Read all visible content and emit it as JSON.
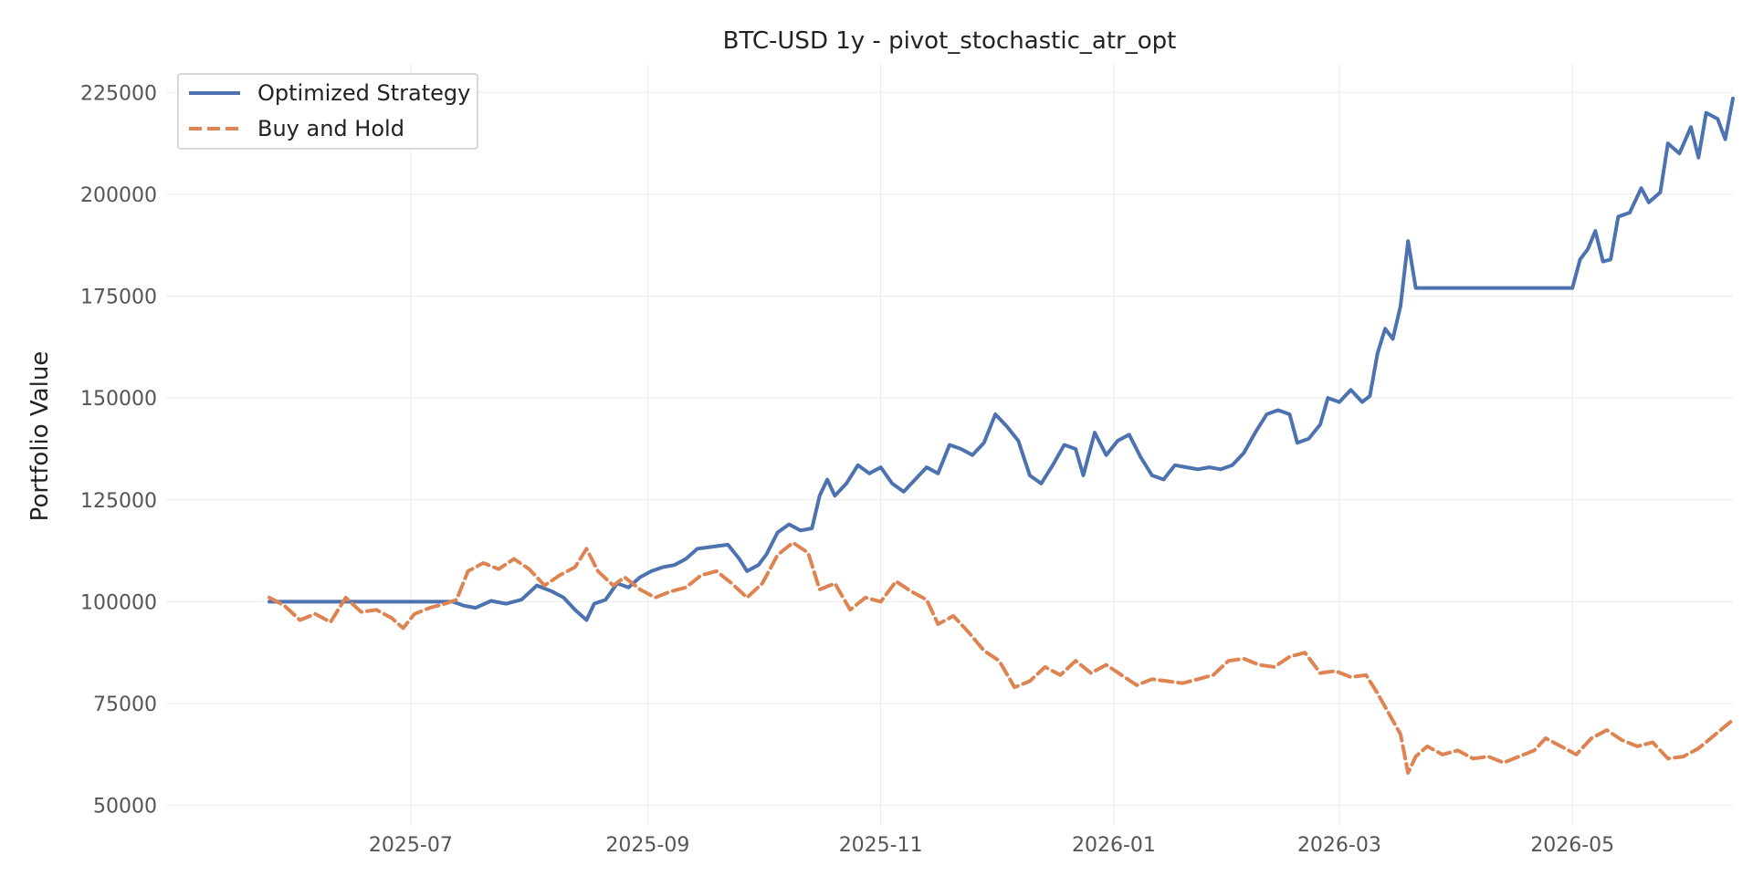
{
  "chart_data": {
    "type": "line",
    "title": "BTC-USD 1y - pivot_stochastic_atr_opt",
    "xlabel": "",
    "ylabel": "Portfolio Value",
    "ylim": [
      45000,
      232000
    ],
    "xlim": [
      "2025-04-28",
      "2026-06-12"
    ],
    "grid": true,
    "legend": "top-left",
    "y_ticks": [
      50000,
      75000,
      100000,
      125000,
      150000,
      175000,
      200000,
      225000
    ],
    "y_tick_labels": [
      "50000",
      "75000",
      "100000",
      "125000",
      "150000",
      "175000",
      "200000",
      "225000"
    ],
    "x_ticks": [
      "2025-07-01",
      "2025-09-01",
      "2025-11-01",
      "2026-01-01",
      "2026-03-01",
      "2026-05-01"
    ],
    "x_tick_labels": [
      "2025-07",
      "2025-09",
      "2025-11",
      "2026-01",
      "2026-03",
      "2026-05"
    ],
    "series": [
      {
        "name": "Optimized Strategy",
        "color": "#4c72b0",
        "style": "solid",
        "points": [
          [
            "2025-05-25",
            100000
          ],
          [
            "2025-07-12",
            100000
          ],
          [
            "2025-07-15",
            99000
          ],
          [
            "2025-07-18",
            98500
          ],
          [
            "2025-07-22",
            100200
          ],
          [
            "2025-07-26",
            99500
          ],
          [
            "2025-07-30",
            100500
          ],
          [
            "2025-08-03",
            104000
          ],
          [
            "2025-08-07",
            102500
          ],
          [
            "2025-08-10",
            101000
          ],
          [
            "2025-08-13",
            98000
          ],
          [
            "2025-08-16",
            95500
          ],
          [
            "2025-08-18",
            99500
          ],
          [
            "2025-08-21",
            100500
          ],
          [
            "2025-08-24",
            104500
          ],
          [
            "2025-08-27",
            103500
          ],
          [
            "2025-08-30",
            106000
          ],
          [
            "2025-09-02",
            107500
          ],
          [
            "2025-09-05",
            108500
          ],
          [
            "2025-09-08",
            109000
          ],
          [
            "2025-09-11",
            110500
          ],
          [
            "2025-09-14",
            113000
          ],
          [
            "2025-09-18",
            113500
          ],
          [
            "2025-09-22",
            114000
          ],
          [
            "2025-09-25",
            110500
          ],
          [
            "2025-09-27",
            107500
          ],
          [
            "2025-09-30",
            109000
          ],
          [
            "2025-10-02",
            111500
          ],
          [
            "2025-10-05",
            117000
          ],
          [
            "2025-10-08",
            119000
          ],
          [
            "2025-10-11",
            117500
          ],
          [
            "2025-10-14",
            118000
          ],
          [
            "2025-10-16",
            126000
          ],
          [
            "2025-10-18",
            130000
          ],
          [
            "2025-10-20",
            126000
          ],
          [
            "2025-10-23",
            129000
          ],
          [
            "2025-10-26",
            133500
          ],
          [
            "2025-10-29",
            131500
          ],
          [
            "2025-11-01",
            133000
          ],
          [
            "2025-11-04",
            129000
          ],
          [
            "2025-11-07",
            127000
          ],
          [
            "2025-11-10",
            130000
          ],
          [
            "2025-11-13",
            133000
          ],
          [
            "2025-11-16",
            131500
          ],
          [
            "2025-11-19",
            138500
          ],
          [
            "2025-11-22",
            137500
          ],
          [
            "2025-11-25",
            136000
          ],
          [
            "2025-11-28",
            139000
          ],
          [
            "2025-12-01",
            146000
          ],
          [
            "2025-12-04",
            143000
          ],
          [
            "2025-12-07",
            139500
          ],
          [
            "2025-12-10",
            131000
          ],
          [
            "2025-12-13",
            129000
          ],
          [
            "2025-12-16",
            133500
          ],
          [
            "2025-12-19",
            138500
          ],
          [
            "2025-12-22",
            137500
          ],
          [
            "2025-12-24",
            131000
          ],
          [
            "2025-12-27",
            141500
          ],
          [
            "2025-12-30",
            136000
          ],
          [
            "2026-01-02",
            139500
          ],
          [
            "2026-01-05",
            141000
          ],
          [
            "2026-01-08",
            135500
          ],
          [
            "2026-01-11",
            131000
          ],
          [
            "2026-01-14",
            130000
          ],
          [
            "2026-01-17",
            133500
          ],
          [
            "2026-01-20",
            133000
          ],
          [
            "2026-01-23",
            132500
          ],
          [
            "2026-01-26",
            133000
          ],
          [
            "2026-01-29",
            132500
          ],
          [
            "2026-02-01",
            133500
          ],
          [
            "2026-02-04",
            136500
          ],
          [
            "2026-02-07",
            141500
          ],
          [
            "2026-02-10",
            146000
          ],
          [
            "2026-02-13",
            147000
          ],
          [
            "2026-02-16",
            146000
          ],
          [
            "2026-02-18",
            139000
          ],
          [
            "2026-02-21",
            140000
          ],
          [
            "2026-02-24",
            143500
          ],
          [
            "2026-02-26",
            150000
          ],
          [
            "2026-03-01",
            149000
          ],
          [
            "2026-03-04",
            152000
          ],
          [
            "2026-03-07",
            149000
          ],
          [
            "2026-03-09",
            150500
          ],
          [
            "2026-03-11",
            161000
          ],
          [
            "2026-03-13",
            167000
          ],
          [
            "2026-03-15",
            164500
          ],
          [
            "2026-03-17",
            172500
          ],
          [
            "2026-03-19",
            188500
          ],
          [
            "2026-03-21",
            177000
          ],
          [
            "2026-05-01",
            177000
          ],
          [
            "2026-05-03",
            184000
          ],
          [
            "2026-05-05",
            186500
          ],
          [
            "2026-05-07",
            191000
          ],
          [
            "2026-05-09",
            183500
          ],
          [
            "2026-05-11",
            184000
          ],
          [
            "2026-05-13",
            194500
          ],
          [
            "2026-05-16",
            195500
          ],
          [
            "2026-05-19",
            201500
          ],
          [
            "2026-05-21",
            198000
          ],
          [
            "2026-05-24",
            200500
          ],
          [
            "2026-05-26",
            212500
          ],
          [
            "2026-05-29",
            210000
          ],
          [
            "2026-06-01",
            216500
          ],
          [
            "2026-06-03",
            209000
          ],
          [
            "2026-06-05",
            220000
          ],
          [
            "2026-06-08",
            218500
          ],
          [
            "2026-06-10",
            213500
          ],
          [
            "2026-06-12",
            223500
          ]
        ]
      },
      {
        "name": "Buy and Hold",
        "color": "#dd8452",
        "style": "dashed",
        "points": [
          [
            "2025-05-25",
            101000
          ],
          [
            "2025-05-29",
            99000
          ],
          [
            "2025-06-02",
            95500
          ],
          [
            "2025-06-06",
            97000
          ],
          [
            "2025-06-10",
            95000
          ],
          [
            "2025-06-14",
            101000
          ],
          [
            "2025-06-18",
            97500
          ],
          [
            "2025-06-22",
            98000
          ],
          [
            "2025-06-26",
            96000
          ],
          [
            "2025-06-29",
            93500
          ],
          [
            "2025-07-02",
            97000
          ],
          [
            "2025-07-06",
            98500
          ],
          [
            "2025-07-10",
            99500
          ],
          [
            "2025-07-13",
            100500
          ],
          [
            "2025-07-16",
            107500
          ],
          [
            "2025-07-20",
            109500
          ],
          [
            "2025-07-24",
            108000
          ],
          [
            "2025-07-28",
            110500
          ],
          [
            "2025-08-01",
            108000
          ],
          [
            "2025-08-05",
            104000
          ],
          [
            "2025-08-09",
            106500
          ],
          [
            "2025-08-13",
            108500
          ],
          [
            "2025-08-16",
            113000
          ],
          [
            "2025-08-19",
            107500
          ],
          [
            "2025-08-23",
            104000
          ],
          [
            "2025-08-26",
            106000
          ],
          [
            "2025-08-30",
            103000
          ],
          [
            "2025-09-03",
            101000
          ],
          [
            "2025-09-07",
            102500
          ],
          [
            "2025-09-11",
            103500
          ],
          [
            "2025-09-15",
            106500
          ],
          [
            "2025-09-19",
            107500
          ],
          [
            "2025-09-23",
            104500
          ],
          [
            "2025-09-27",
            101000
          ],
          [
            "2025-10-01",
            104500
          ],
          [
            "2025-10-05",
            111500
          ],
          [
            "2025-10-09",
            114500
          ],
          [
            "2025-10-13",
            112000
          ],
          [
            "2025-10-16",
            103000
          ],
          [
            "2025-10-20",
            104500
          ],
          [
            "2025-10-24",
            98000
          ],
          [
            "2025-10-28",
            101000
          ],
          [
            "2025-11-01",
            100000
          ],
          [
            "2025-11-05",
            105000
          ],
          [
            "2025-11-09",
            102500
          ],
          [
            "2025-11-13",
            100500
          ],
          [
            "2025-11-16",
            94500
          ],
          [
            "2025-11-20",
            96500
          ],
          [
            "2025-11-24",
            92500
          ],
          [
            "2025-11-28",
            88000
          ],
          [
            "2025-12-02",
            85500
          ],
          [
            "2025-12-06",
            79000
          ],
          [
            "2025-12-10",
            80500
          ],
          [
            "2025-12-14",
            84000
          ],
          [
            "2025-12-18",
            82000
          ],
          [
            "2025-12-22",
            85500
          ],
          [
            "2025-12-26",
            82500
          ],
          [
            "2025-12-30",
            84500
          ],
          [
            "2026-01-03",
            82000
          ],
          [
            "2026-01-07",
            79500
          ],
          [
            "2026-01-11",
            81000
          ],
          [
            "2026-01-15",
            80500
          ],
          [
            "2026-01-19",
            80000
          ],
          [
            "2026-01-23",
            81000
          ],
          [
            "2026-01-27",
            82000
          ],
          [
            "2026-01-31",
            85500
          ],
          [
            "2026-02-04",
            86000
          ],
          [
            "2026-02-08",
            84500
          ],
          [
            "2026-02-12",
            84000
          ],
          [
            "2026-02-16",
            86500
          ],
          [
            "2026-02-20",
            87500
          ],
          [
            "2026-02-24",
            82500
          ],
          [
            "2026-02-28",
            83000
          ],
          [
            "2026-03-04",
            81500
          ],
          [
            "2026-03-08",
            82000
          ],
          [
            "2026-03-11",
            77500
          ],
          [
            "2026-03-14",
            72500
          ],
          [
            "2026-03-17",
            67500
          ],
          [
            "2026-03-19",
            58000
          ],
          [
            "2026-03-21",
            62000
          ],
          [
            "2026-03-24",
            64500
          ],
          [
            "2026-03-28",
            62500
          ],
          [
            "2026-04-01",
            63500
          ],
          [
            "2026-04-05",
            61500
          ],
          [
            "2026-04-09",
            62000
          ],
          [
            "2026-04-13",
            60500
          ],
          [
            "2026-04-17",
            62000
          ],
          [
            "2026-04-21",
            63500
          ],
          [
            "2026-04-24",
            66500
          ],
          [
            "2026-04-28",
            64500
          ],
          [
            "2026-05-02",
            62500
          ],
          [
            "2026-05-06",
            66500
          ],
          [
            "2026-05-10",
            68500
          ],
          [
            "2026-05-14",
            66000
          ],
          [
            "2026-05-18",
            64500
          ],
          [
            "2026-05-22",
            65500
          ],
          [
            "2026-05-26",
            61500
          ],
          [
            "2026-05-30",
            62000
          ],
          [
            "2026-06-03",
            64000
          ],
          [
            "2026-06-12",
            71000
          ]
        ]
      }
    ]
  }
}
